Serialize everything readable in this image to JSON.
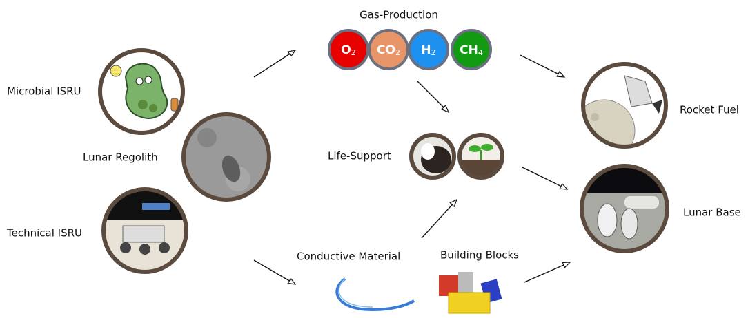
{
  "sources": [
    {
      "label": "Microbial ISRU"
    },
    {
      "label": "Lunar Regolith"
    },
    {
      "label": "Technical ISRU"
    }
  ],
  "products": {
    "gas_production": {
      "label": "Gas-Production",
      "gases": [
        {
          "symbol": "O",
          "sub": "2"
        },
        {
          "symbol": "CO",
          "sub": "2"
        },
        {
          "symbol": "H",
          "sub": "2"
        },
        {
          "symbol": "CH",
          "sub": "4"
        }
      ]
    },
    "life_support": {
      "label": "Life-Support"
    },
    "conductive_material": {
      "label": "Conductive Material"
    },
    "building_blocks": {
      "label": "Building Blocks"
    }
  },
  "applications": [
    {
      "label": "Rocket Fuel"
    },
    {
      "label": "Lunar Base"
    }
  ]
}
